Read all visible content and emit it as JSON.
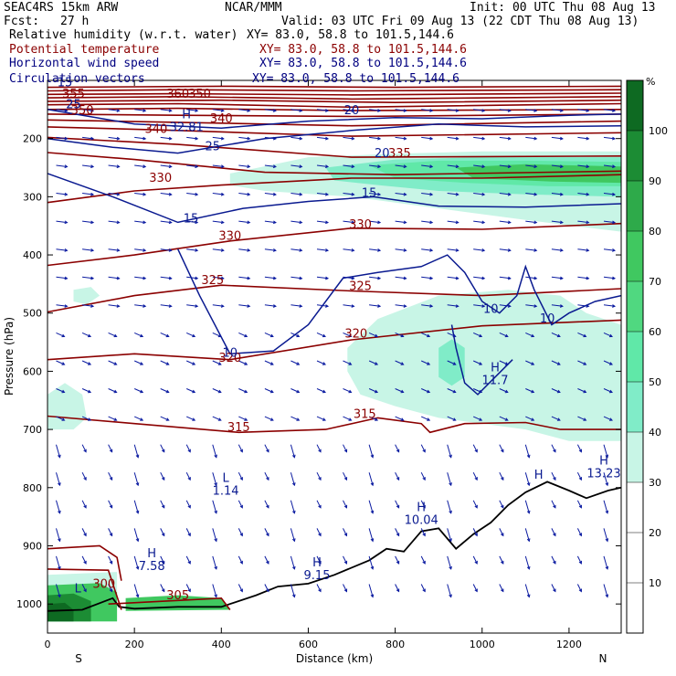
{
  "header": {
    "model": "SEAC4RS 15km ARW",
    "org": "NCAR/MMM",
    "init": "Init: 00 UTC Thu 08 Aug 13",
    "fcst_label": "Fcst:",
    "fcst_value": "27 h",
    "valid": "Valid: 03 UTC Fri 09 Aug 13 (22 CDT Thu 08 Aug 13)"
  },
  "fields": [
    {
      "name": "Relative humidity (w.r.t. water)",
      "xy": "XY=  83.0, 58.8 to 101.5,144.6",
      "color": "#000000"
    },
    {
      "name": "Potential temperature",
      "xy": "XY=  83.0, 58.8 to 101.5,144.6",
      "color": "#8b0000"
    },
    {
      "name": "Horizontal wind speed",
      "xy": "XY=  83.0, 58.8 to 101.5,144.6",
      "color": "#000080"
    },
    {
      "name": "Circulation vectors",
      "xy": "XY=  83.0, 58.8 to 101.5,144.6",
      "color": "#000080"
    }
  ],
  "chart_data": {
    "type": "cross-section",
    "xlabel": "Distance (km)",
    "ylabel": "Pressure (hPa)",
    "x_ticks": [
      0,
      200,
      400,
      600,
      800,
      1000,
      1200
    ],
    "y_ticks": [
      200,
      300,
      400,
      500,
      600,
      700,
      800,
      900,
      1000
    ],
    "xlim": [
      0,
      1320
    ],
    "ylim": [
      100,
      1050
    ],
    "x_end_labels": {
      "left": "S",
      "right": "N"
    },
    "colorbar": {
      "unit": "%",
      "ticks": [
        10,
        20,
        30,
        40,
        50,
        60,
        70,
        80,
        90,
        100
      ],
      "bins": [
        {
          "from": 0,
          "to": 30,
          "color": "#ffffff"
        },
        {
          "from": 30,
          "to": 40,
          "color": "#c8f5e6"
        },
        {
          "from": 40,
          "to": 50,
          "color": "#80ecc8"
        },
        {
          "from": 50,
          "to": 60,
          "color": "#60e8a8"
        },
        {
          "from": 60,
          "to": 70,
          "color": "#50d880"
        },
        {
          "from": 70,
          "to": 80,
          "color": "#40c860"
        },
        {
          "from": 80,
          "to": 90,
          "color": "#2eaa4a"
        },
        {
          "from": 90,
          "to": 100,
          "color": "#1c8c34"
        },
        {
          "from": 100,
          "to": 110,
          "color": "#0e6a22"
        }
      ]
    },
    "theta_labels": [
      {
        "label": "350",
        "x": 80,
        "p": 158
      },
      {
        "label": "355",
        "x": 60,
        "p": 130
      },
      {
        "label": "360",
        "x": 300,
        "p": 130
      },
      {
        "label": "350",
        "x": 350,
        "p": 130
      },
      {
        "label": "340",
        "x": 400,
        "p": 172
      },
      {
        "label": "340",
        "x": 250,
        "p": 190
      },
      {
        "label": "335",
        "x": 810,
        "p": 232
      },
      {
        "label": "330",
        "x": 260,
        "p": 274
      },
      {
        "label": "330",
        "x": 720,
        "p": 354
      },
      {
        "label": "330",
        "x": 420,
        "p": 374
      },
      {
        "label": "325",
        "x": 380,
        "p": 450
      },
      {
        "label": "325",
        "x": 720,
        "p": 460
      },
      {
        "label": "320",
        "x": 420,
        "p": 584
      },
      {
        "label": "320",
        "x": 710,
        "p": 542
      },
      {
        "label": "315",
        "x": 440,
        "p": 703
      },
      {
        "label": "315",
        "x": 730,
        "p": 680
      },
      {
        "label": "305",
        "x": 300,
        "p": 992
      },
      {
        "label": "300",
        "x": 130,
        "p": 972
      }
    ],
    "wind_labels": [
      {
        "label": "25",
        "x": 60,
        "p": 148
      },
      {
        "label": "25",
        "x": 380,
        "p": 220
      },
      {
        "label": "20",
        "x": 700,
        "p": 158
      },
      {
        "label": "20",
        "x": 770,
        "p": 232
      },
      {
        "label": "15",
        "x": 330,
        "p": 344
      },
      {
        "label": "15",
        "x": 740,
        "p": 300
      },
      {
        "label": "10",
        "x": 1020,
        "p": 500
      },
      {
        "label": "10",
        "x": 1150,
        "p": 516
      },
      {
        "label": "10",
        "x": 420,
        "p": 575
      },
      {
        "label": "15",
        "x": 40,
        "p": 110
      }
    ],
    "extrema": [
      {
        "kind": "H",
        "value": "32.81",
        "x": 320,
        "p": 165
      },
      {
        "kind": "H",
        "value": "11.7",
        "x": 1030,
        "p": 600
      },
      {
        "kind": "L",
        "value": "1.14",
        "x": 410,
        "p": 790
      },
      {
        "kind": "H",
        "value": "10.04",
        "x": 860,
        "p": 840
      },
      {
        "kind": "H",
        "value": "9.15",
        "x": 620,
        "p": 935
      },
      {
        "kind": "H",
        "value": "7.58",
        "x": 240,
        "p": 920
      },
      {
        "kind": "H",
        "value": "13.23",
        "x": 1280,
        "p": 760
      },
      {
        "kind": "H",
        "value": "",
        "x": 1130,
        "p": 785
      },
      {
        "kind": "L",
        "value": "",
        "x": 70,
        "p": 980
      }
    ]
  }
}
